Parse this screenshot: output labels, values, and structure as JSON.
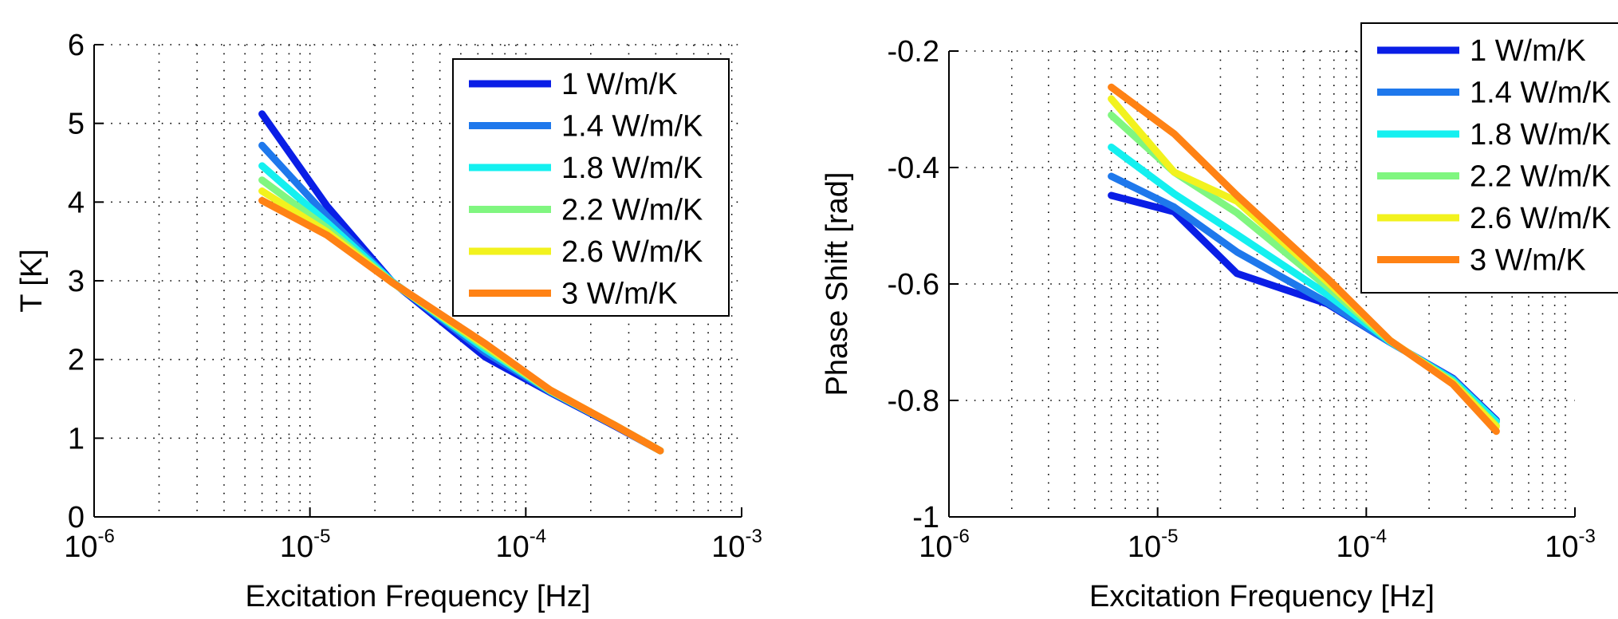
{
  "chart_data": [
    {
      "type": "line",
      "title": "",
      "xlabel": "Excitation Frequency [Hz]",
      "ylabel": "T [K]",
      "xscale": "log",
      "xlim": [
        1e-06,
        0.001
      ],
      "ylim": [
        0,
        6
      ],
      "xticks": [
        {
          "base": "10",
          "exp": "-6"
        },
        {
          "base": "10",
          "exp": "-5"
        },
        {
          "base": "10",
          "exp": "-4"
        },
        {
          "base": "10",
          "exp": "-3"
        }
      ],
      "yticks": [
        "0",
        "1",
        "2",
        "3",
        "4",
        "5",
        "6"
      ],
      "grid": true,
      "legend": "top-right",
      "x": [
        6e-06,
        1.2e-05,
        2.4e-05,
        6.5e-05,
        0.00013,
        0.00026,
        0.00042
      ],
      "series": [
        {
          "name": "1 W/m/K",
          "color": "#0a1ee6",
          "values": [
            5.12,
            3.95,
            2.99,
            2.03,
            1.58,
            1.15,
            0.84
          ]
        },
        {
          "name": "1.4 W/m/K",
          "color": "#1e78ec",
          "values": [
            4.72,
            3.82,
            2.99,
            2.09,
            1.59,
            1.16,
            0.84
          ]
        },
        {
          "name": "1.8 W/m/K",
          "color": "#14f0f0",
          "values": [
            4.46,
            3.74,
            2.99,
            2.13,
            1.6,
            1.16,
            0.84
          ]
        },
        {
          "name": "2.2 W/m/K",
          "color": "#80f680",
          "values": [
            4.28,
            3.67,
            2.98,
            2.16,
            1.6,
            1.16,
            0.84
          ]
        },
        {
          "name": "2.6 W/m/K",
          "color": "#f2f21e",
          "values": [
            4.14,
            3.62,
            2.98,
            2.18,
            1.61,
            1.16,
            0.84
          ]
        },
        {
          "name": "3 W/m/K",
          "color": "#ff8214",
          "values": [
            4.02,
            3.58,
            2.98,
            2.2,
            1.61,
            1.16,
            0.84
          ]
        }
      ]
    },
    {
      "type": "line",
      "title": "",
      "xlabel": "Excitation Frequency [Hz]",
      "ylabel": "Phase Shift [rad]",
      "xscale": "log",
      "xlim": [
        1e-06,
        0.001
      ],
      "ylim": [
        -1,
        -0.2
      ],
      "xticks": [
        {
          "base": "10",
          "exp": "-6"
        },
        {
          "base": "10",
          "exp": "-5"
        },
        {
          "base": "10",
          "exp": "-4"
        },
        {
          "base": "10",
          "exp": "-3"
        }
      ],
      "yticks": [
        "-1",
        "-0.8",
        "-0.6",
        "-0.4",
        "-0.2"
      ],
      "grid": true,
      "legend": "top-right",
      "x": [
        6e-06,
        1.2e-05,
        2.4e-05,
        6.5e-05,
        0.00013,
        0.00026,
        0.00042
      ],
      "series": [
        {
          "name": "1 W/m/K",
          "color": "#0a1ee6",
          "values": [
            -0.448,
            -0.476,
            -0.582,
            -0.634,
            -0.7,
            -0.762,
            -0.834
          ]
        },
        {
          "name": "1.4 W/m/K",
          "color": "#1e78ec",
          "values": [
            -0.415,
            -0.468,
            -0.545,
            -0.632,
            -0.7,
            -0.763,
            -0.836
          ]
        },
        {
          "name": "1.8 W/m/K",
          "color": "#14f0f0",
          "values": [
            -0.365,
            -0.445,
            -0.515,
            -0.618,
            -0.699,
            -0.765,
            -0.836
          ]
        },
        {
          "name": "2.2 W/m/K",
          "color": "#80f680",
          "values": [
            -0.31,
            -0.408,
            -0.478,
            -0.605,
            -0.698,
            -0.768,
            -0.843
          ]
        },
        {
          "name": "2.6 W/m/K",
          "color": "#f2f21e",
          "values": [
            -0.282,
            -0.408,
            -0.458,
            -0.596,
            -0.697,
            -0.77,
            -0.845
          ]
        },
        {
          "name": "3 W/m/K",
          "color": "#ff8214",
          "values": [
            -0.262,
            -0.342,
            -0.448,
            -0.59,
            -0.697,
            -0.772,
            -0.853
          ]
        }
      ]
    }
  ]
}
